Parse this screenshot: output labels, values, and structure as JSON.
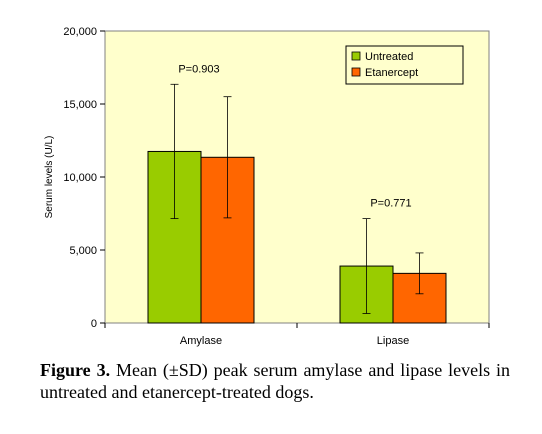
{
  "chart_data": {
    "type": "bar",
    "title": "",
    "xlabel": "",
    "ylabel": "Serum levels (U/L)",
    "ylim": [
      0,
      20000
    ],
    "yticks": [
      0,
      5000,
      10000,
      15000,
      20000
    ],
    "ytick_labels": [
      "0",
      "5,000",
      "10,000",
      "15,000",
      "20,000"
    ],
    "categories": [
      "Amylase",
      "Lipase"
    ],
    "series": [
      {
        "name": "Untreated",
        "color": "#99cc00",
        "values": [
          11750,
          3900
        ],
        "sd": [
          4600,
          3250
        ]
      },
      {
        "name": "Etanercept",
        "color": "#ff6600",
        "values": [
          11350,
          3400
        ],
        "sd": [
          4150,
          1400
        ]
      }
    ],
    "annotations": [
      {
        "text": "P=0.903",
        "category": "Amylase"
      },
      {
        "text": "P=0.771",
        "category": "Lipase"
      }
    ],
    "legend_position": "top-right",
    "plot_background": "#ffffcc",
    "grid": false
  },
  "caption": {
    "label": "Figure 3.",
    "text": " Mean (±SD) peak serum amylase and lipase levels in untreated and etanercept-treated dogs."
  }
}
